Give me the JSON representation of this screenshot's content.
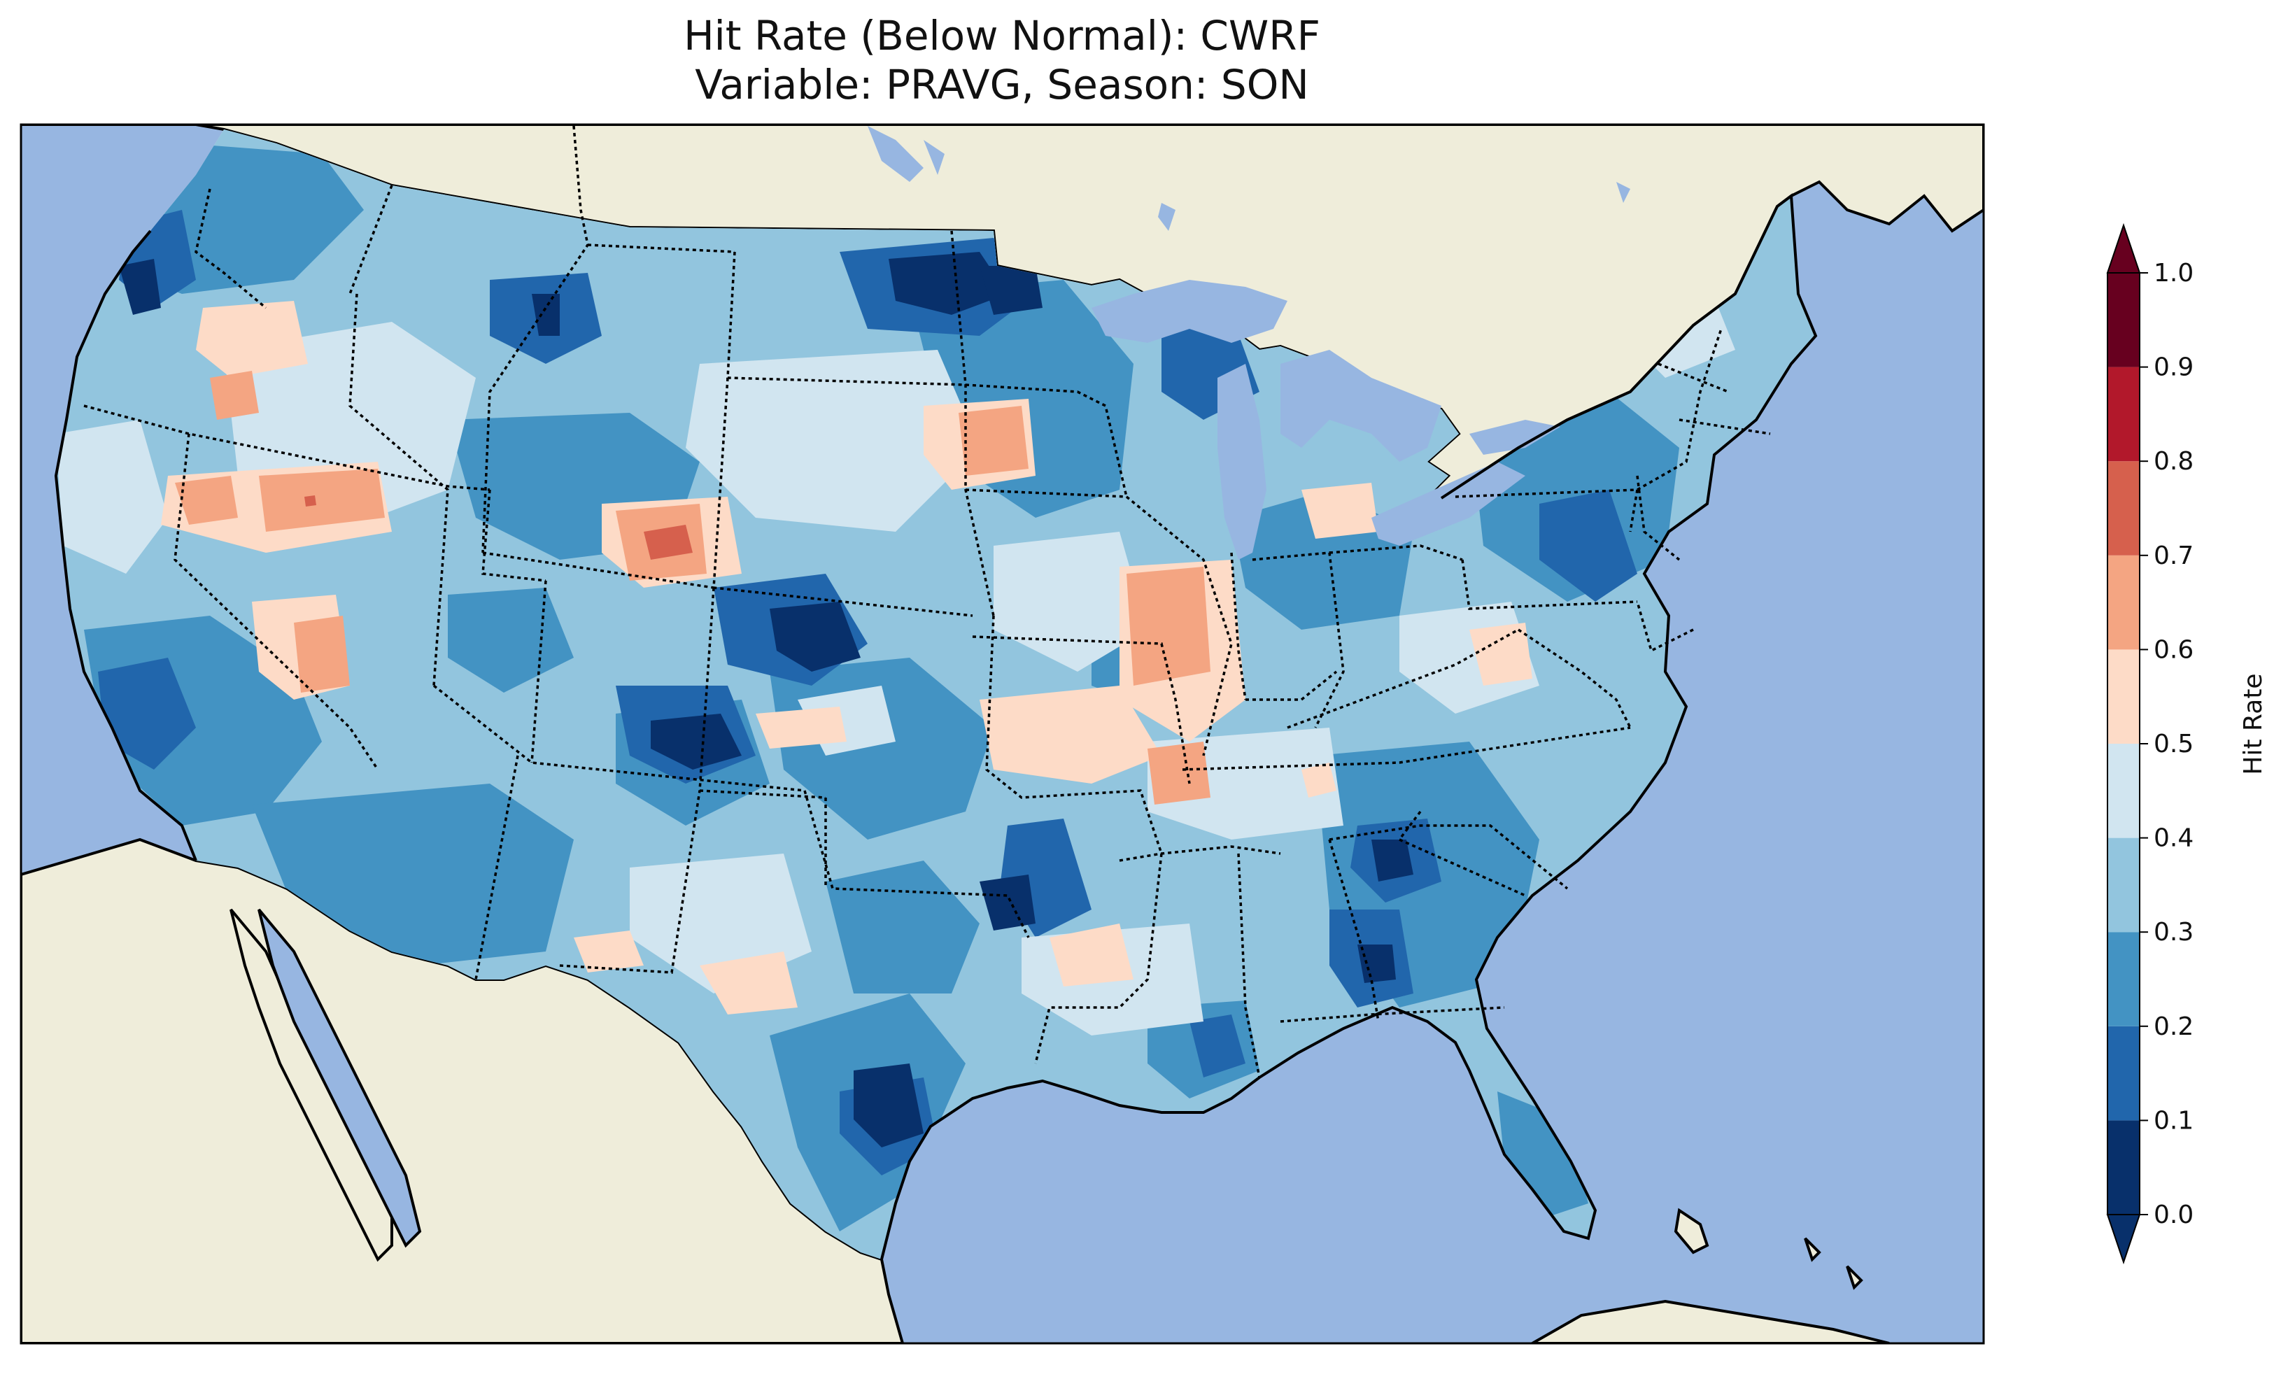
{
  "title": {
    "line1": "Hit Rate (Below Normal): CWRF",
    "line2": "Variable: PRAVG, Season: SON"
  },
  "colors": {
    "ocean": "#97b6e1",
    "land": "#efedda",
    "lakes": "#97b6e1",
    "coastline": "#000000",
    "state_border": "#000000"
  },
  "colorbar": {
    "label": "Hit Rate",
    "ticks": [
      "0.0",
      "0.1",
      "0.2",
      "0.3",
      "0.4",
      "0.5",
      "0.6",
      "0.7",
      "0.8",
      "0.9",
      "1.0"
    ],
    "bins": [
      {
        "from": 0.0,
        "to": 0.1,
        "color": "#08306b"
      },
      {
        "from": 0.1,
        "to": 0.2,
        "color": "#2166ac"
      },
      {
        "from": 0.2,
        "to": 0.3,
        "color": "#4393c3"
      },
      {
        "from": 0.3,
        "to": 0.4,
        "color": "#92c5de"
      },
      {
        "from": 0.4,
        "to": 0.5,
        "color": "#d1e5f0"
      },
      {
        "from": 0.5,
        "to": 0.6,
        "color": "#fddbc7"
      },
      {
        "from": 0.6,
        "to": 0.7,
        "color": "#f4a582"
      },
      {
        "from": 0.7,
        "to": 0.8,
        "color": "#d6604d"
      },
      {
        "from": 0.8,
        "to": 0.9,
        "color": "#b2182b"
      },
      {
        "from": 0.9,
        "to": 1.0,
        "color": "#67001f"
      }
    ],
    "extend": "both"
  },
  "map": {
    "region": "Contiguous United States",
    "projection": "Lambert Conformal",
    "features": [
      "coastlines",
      "state borders",
      "lakes",
      "ocean",
      "land"
    ]
  }
}
